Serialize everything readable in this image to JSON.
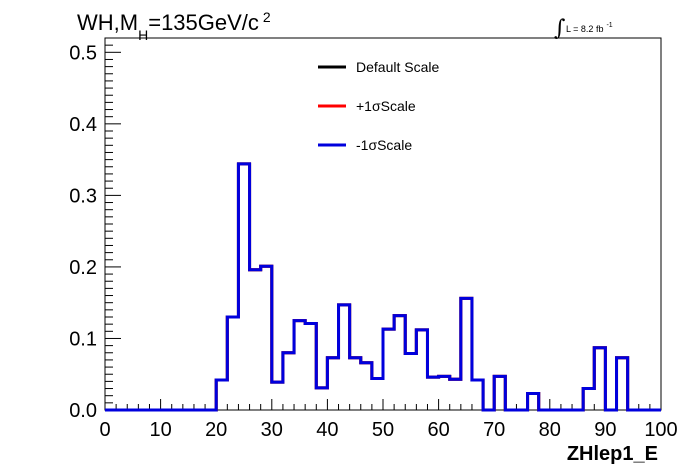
{
  "chart_data": {
    "type": "line",
    "title_main": "WH,M",
    "title_sub": "H",
    "title_rest": "=135GeV/c",
    "title_sup": "2",
    "luminosity": {
      "symbol": "∫",
      "text": "L = 8.2 fb",
      "sup": "-1"
    },
    "xlabel": "ZHlep1_E",
    "ylabel": "",
    "xlim": [
      0,
      100
    ],
    "ylim": [
      0,
      0.52
    ],
    "x_ticks": [
      0,
      10,
      20,
      30,
      40,
      50,
      60,
      70,
      80,
      90,
      100
    ],
    "x_tick_labels": [
      "0",
      "10",
      "20",
      "30",
      "40",
      "50",
      "60",
      "70",
      "80",
      "90",
      "100"
    ],
    "y_ticks": [
      0,
      0.1,
      0.2,
      0.3,
      0.4,
      0.5
    ],
    "y_tick_labels": [
      "0.0",
      "0.1",
      "0.2",
      "0.3",
      "0.4",
      "0.5"
    ],
    "bin_edges": [
      0,
      2,
      4,
      6,
      8,
      10,
      12,
      14,
      16,
      18,
      20,
      22,
      24,
      26,
      28,
      30,
      32,
      34,
      36,
      38,
      40,
      42,
      44,
      46,
      48,
      50,
      52,
      54,
      56,
      58,
      60,
      62,
      64,
      66,
      68,
      70,
      72,
      74,
      76,
      78,
      80,
      82,
      84,
      86,
      88,
      90,
      92,
      94,
      96,
      98,
      100
    ],
    "series": [
      {
        "name": "Default Scale",
        "color": "#000000",
        "values": [
          0,
          0,
          0,
          0,
          0,
          0,
          0,
          0,
          0,
          0,
          0.042,
          0.13,
          0.344,
          0.196,
          0.201,
          0.039,
          0.08,
          0.125,
          0.121,
          0.031,
          0.073,
          0.147,
          0.073,
          0.066,
          0.044,
          0.113,
          0.132,
          0.079,
          0.112,
          0.046,
          0.047,
          0.043,
          0.156,
          0.042,
          0,
          0.047,
          0,
          0,
          0.023,
          0,
          0,
          0,
          0,
          0.03,
          0.087,
          0,
          0.073,
          0,
          0,
          0
        ]
      },
      {
        "name": "+1σScale",
        "color": "#ff0000",
        "values": [
          0,
          0,
          0,
          0,
          0,
          0,
          0,
          0,
          0,
          0,
          0.042,
          0.13,
          0.344,
          0.196,
          0.201,
          0.039,
          0.08,
          0.125,
          0.121,
          0.031,
          0.073,
          0.147,
          0.073,
          0.066,
          0.044,
          0.113,
          0.132,
          0.079,
          0.112,
          0.046,
          0.047,
          0.043,
          0.156,
          0.042,
          0,
          0.047,
          0,
          0,
          0.023,
          0,
          0,
          0,
          0,
          0.03,
          0.087,
          0,
          0.073,
          0,
          0,
          0
        ]
      },
      {
        "name": "-1σScale",
        "color": "#0000dd",
        "values": [
          0,
          0,
          0,
          0,
          0,
          0,
          0,
          0,
          0,
          0,
          0.042,
          0.13,
          0.344,
          0.196,
          0.201,
          0.039,
          0.08,
          0.125,
          0.121,
          0.031,
          0.073,
          0.147,
          0.073,
          0.066,
          0.044,
          0.113,
          0.132,
          0.079,
          0.112,
          0.046,
          0.047,
          0.043,
          0.156,
          0.042,
          0,
          0.047,
          0,
          0,
          0.023,
          0,
          0,
          0,
          0,
          0.03,
          0.087,
          0,
          0.073,
          0,
          0,
          0
        ]
      }
    ],
    "legend_position": "top-center",
    "grid": false
  }
}
